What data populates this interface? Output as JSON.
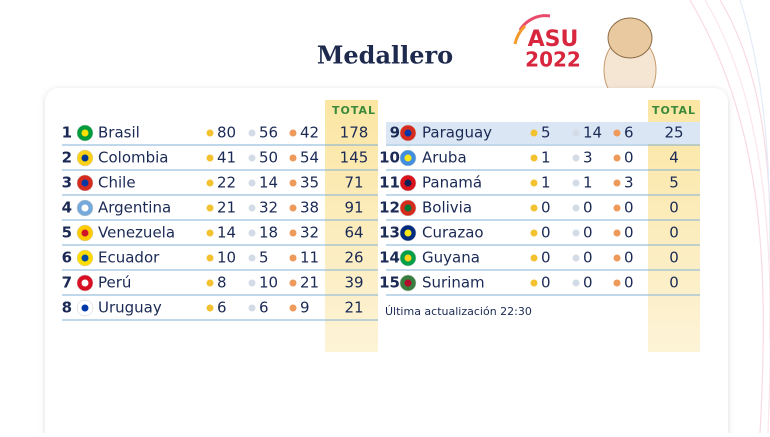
{
  "header": {
    "title": "Medallero",
    "logo_top": "ASU",
    "logo_bottom": "2022"
  },
  "tables": [
    {
      "total_label": "TOTAL",
      "rows": [
        {
          "rank": 1,
          "country": "Brasil",
          "gold": 80,
          "silver": 56,
          "bronze": 42,
          "total": 178
        },
        {
          "rank": 2,
          "country": "Colombia",
          "gold": 41,
          "silver": 50,
          "bronze": 54,
          "total": 145
        },
        {
          "rank": 3,
          "country": "Chile",
          "gold": 22,
          "silver": 14,
          "bronze": 35,
          "total": 71
        },
        {
          "rank": 4,
          "country": "Argentina",
          "gold": 21,
          "silver": 32,
          "bronze": 38,
          "total": 91
        },
        {
          "rank": 5,
          "country": "Venezuela",
          "gold": 14,
          "silver": 18,
          "bronze": 32,
          "total": 64
        },
        {
          "rank": 6,
          "country": "Ecuador",
          "gold": 10,
          "silver": 5,
          "bronze": 11,
          "total": 26
        },
        {
          "rank": 7,
          "country": "Perú",
          "gold": 8,
          "silver": 10,
          "bronze": 21,
          "total": 39
        },
        {
          "rank": 8,
          "country": "Uruguay",
          "gold": 6,
          "silver": 6,
          "bronze": 9,
          "total": 21
        }
      ]
    },
    {
      "total_label": "TOTAL",
      "rows": [
        {
          "rank": 9,
          "country": "Paraguay",
          "gold": 5,
          "silver": 14,
          "bronze": 6,
          "total": 25
        },
        {
          "rank": 10,
          "country": "Aruba",
          "gold": 1,
          "silver": 3,
          "bronze": 0,
          "total": 4
        },
        {
          "rank": 11,
          "country": "Panamá",
          "gold": 1,
          "silver": 1,
          "bronze": 3,
          "total": 5
        },
        {
          "rank": 12,
          "country": "Bolivia",
          "gold": 0,
          "silver": 0,
          "bronze": 0,
          "total": 0
        },
        {
          "rank": 13,
          "country": "Curazao",
          "gold": 0,
          "silver": 0,
          "bronze": 0,
          "total": 0
        },
        {
          "rank": 14,
          "country": "Guyana",
          "gold": 0,
          "silver": 0,
          "bronze": 0,
          "total": 0
        },
        {
          "rank": 15,
          "country": "Surinam",
          "gold": 0,
          "silver": 0,
          "bronze": 0,
          "total": 0
        }
      ]
    }
  ],
  "footnote": "Última actualización 22:30"
}
